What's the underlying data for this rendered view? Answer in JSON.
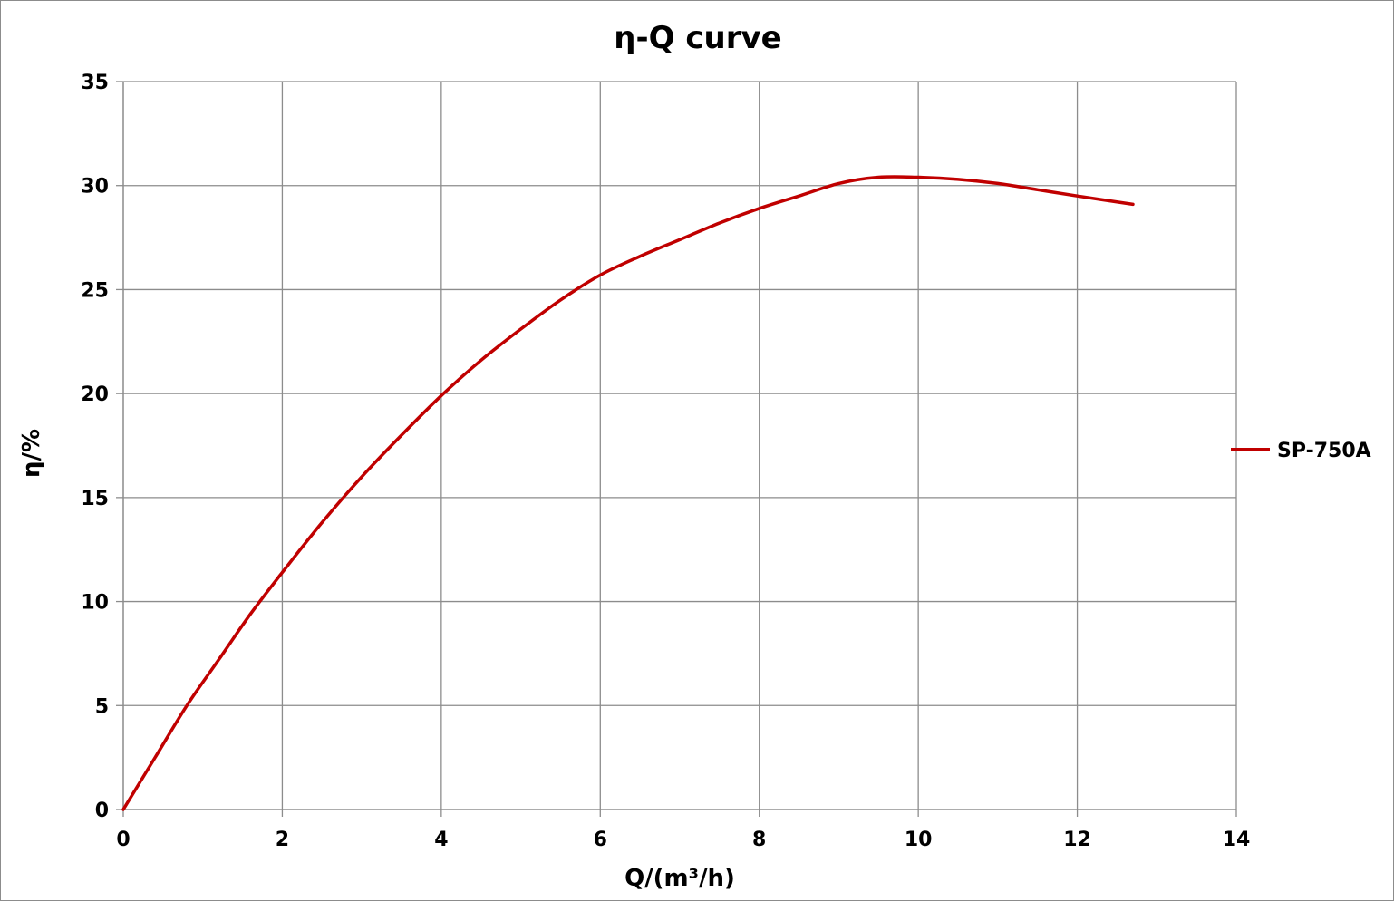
{
  "chart_data": {
    "type": "line",
    "title": "η-Q  curve",
    "xlabel": "Q/(m³/h)",
    "ylabel": "η/%",
    "xlim": [
      0,
      14
    ],
    "ylim": [
      0,
      35
    ],
    "xticks": [
      0,
      2,
      4,
      6,
      8,
      10,
      12,
      14
    ],
    "yticks": [
      0,
      5,
      10,
      15,
      20,
      25,
      30,
      35
    ],
    "grid": true,
    "legend_position": "right",
    "series": [
      {
        "name": "SP-750A",
        "color": "#c00000",
        "x": [
          0,
          0.4,
          0.8,
          1.2,
          1.6,
          2.0,
          2.5,
          3.0,
          3.5,
          4.0,
          4.5,
          5.0,
          5.5,
          6.0,
          6.5,
          7.0,
          7.5,
          8.0,
          8.5,
          9.0,
          9.5,
          10.0,
          10.5,
          11.0,
          11.5,
          12.0,
          12.7
        ],
        "y": [
          0,
          2.5,
          5.0,
          7.2,
          9.4,
          11.4,
          13.8,
          16.0,
          18.0,
          19.9,
          21.6,
          23.1,
          24.5,
          25.7,
          26.6,
          27.4,
          28.2,
          28.9,
          29.5,
          30.1,
          30.4,
          30.4,
          30.3,
          30.1,
          29.8,
          29.5,
          29.1
        ]
      }
    ]
  }
}
